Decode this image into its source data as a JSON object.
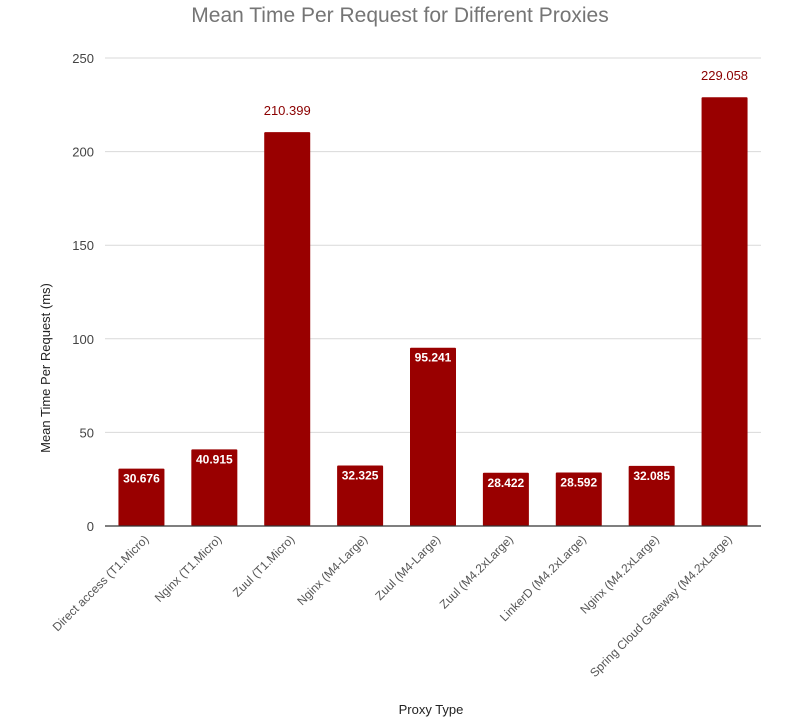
{
  "chart_data": {
    "type": "bar",
    "title": "Mean Time Per Request for Different Proxies",
    "xlabel": "Proxy Type",
    "ylabel": "Mean Time Per Request (ms)",
    "ylim": [
      0,
      250
    ],
    "yticks": [
      "0",
      "50",
      "100",
      "150",
      "200",
      "250"
    ],
    "grid": true,
    "legend": "none",
    "bar_color": "#990000",
    "categories": [
      "Direct access (T1.Micro)",
      "Nginx (T1.Micro)",
      "Zuul (T1.Micro)",
      "Nginx (M4-Large)",
      "Zuul (M4-Large)",
      "Zuul (M4.2xLarge)",
      "LinkerD (M4.2xLarge)",
      "Nginx (M4.2xLarge)",
      "Spring Cloud Gateway (M4.2xLarge)"
    ],
    "values": [
      30.676,
      40.915,
      210.399,
      32.325,
      95.241,
      28.422,
      28.592,
      32.085,
      229.058
    ],
    "data_labels": [
      "30.676",
      "40.915",
      "210.399",
      "32.325",
      "95.241",
      "28.422",
      "28.592",
      "32.085",
      "229.058"
    ]
  }
}
